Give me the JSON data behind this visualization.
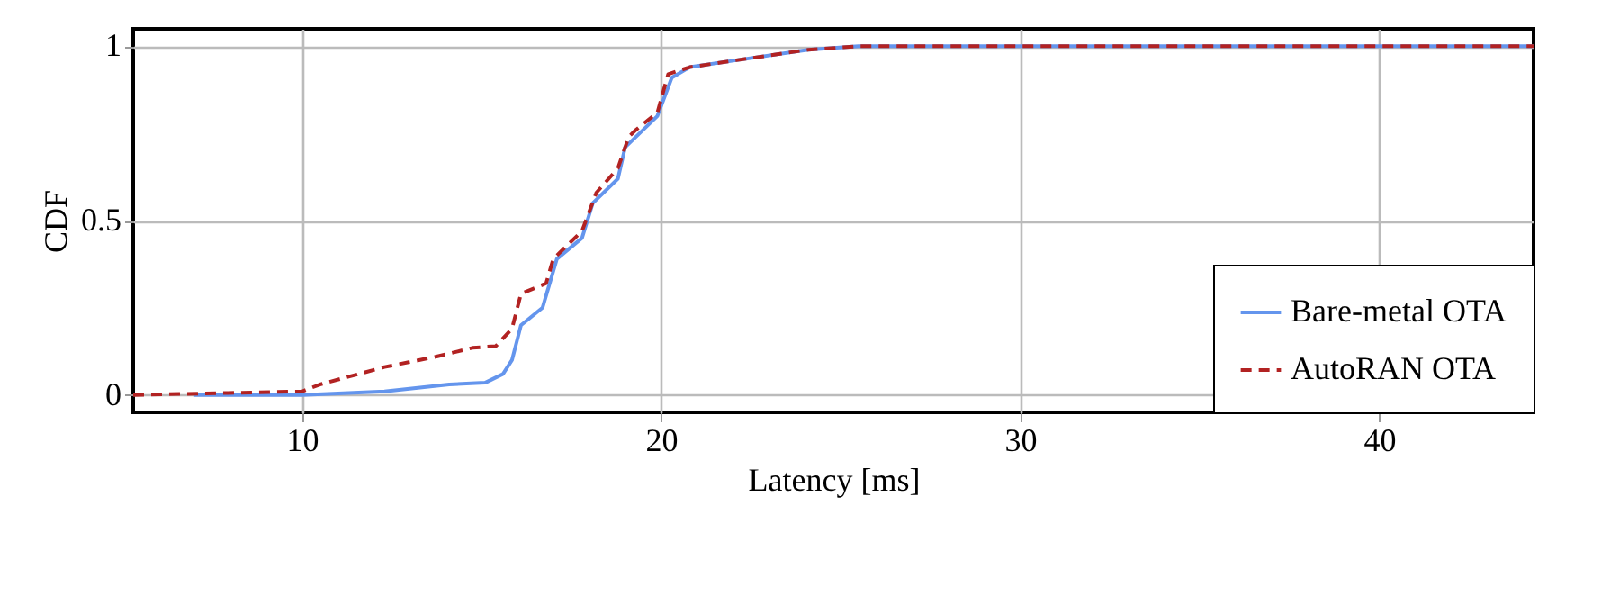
{
  "chart_data": {
    "type": "line",
    "xlabel": "Latency [ms]",
    "ylabel": "CDF",
    "xlim": [
      5.3,
      44.3
    ],
    "xticks": [
      10,
      20,
      30,
      40
    ],
    "ylim": [
      -0.05,
      1.05
    ],
    "yticks": [
      0,
      0.5,
      1
    ],
    "grid": true,
    "legend": "bottom right",
    "series": [
      {
        "name": "Bare-metal OTA",
        "color": "#6495ed",
        "line_style": "solid",
        "x": [
          7,
          10,
          12.3,
          14.1,
          15.1,
          15.6,
          15.85,
          16.1,
          16.7,
          17.1,
          17.8,
          18.1,
          18.8,
          19.0,
          19.9,
          20.3,
          20.8,
          22.1,
          24.1,
          25.5,
          44.3
        ],
        "values": [
          0,
          0,
          0.01,
          0.03,
          0.035,
          0.06,
          0.1,
          0.2,
          0.25,
          0.39,
          0.45,
          0.55,
          0.62,
          0.71,
          0.8,
          0.91,
          0.94,
          0.96,
          0.99,
          1,
          1
        ]
      },
      {
        "name": "AutoRAN OTA",
        "color": "#b22222",
        "line_style": "dashed",
        "x": [
          5.3,
          10,
          10.5,
          12.3,
          13.75,
          14.75,
          15.4,
          15.85,
          16.1,
          16.8,
          17.0,
          17.8,
          18.2,
          18.8,
          19.1,
          19.3,
          19.9,
          20.2,
          20.8,
          22.1,
          24.1,
          25.5,
          44.3
        ],
        "values": [
          0,
          0.01,
          0.03,
          0.08,
          0.11,
          0.135,
          0.14,
          0.19,
          0.29,
          0.32,
          0.39,
          0.47,
          0.58,
          0.65,
          0.74,
          0.76,
          0.81,
          0.92,
          0.94,
          0.96,
          0.99,
          1,
          1
        ]
      }
    ]
  }
}
